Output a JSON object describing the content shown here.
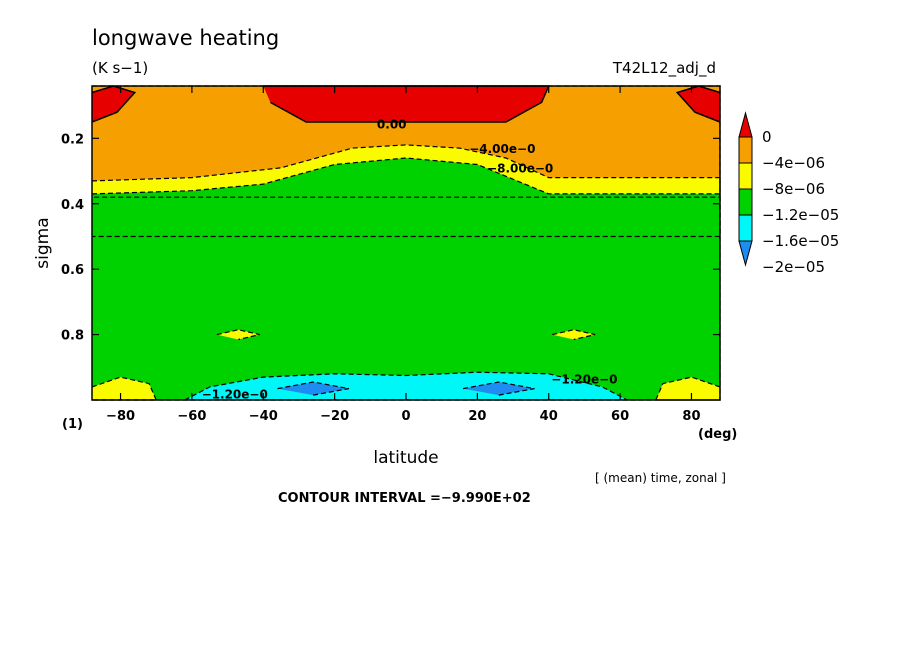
{
  "title": "longwave heating",
  "units": "(K s−1)",
  "run_id": "T42L12_adj_d",
  "panel_label": "(1)",
  "x_unit": "(deg)",
  "averaging_note": "[ (mean) time, zonal ]",
  "contour_interval_text": "CONTOUR INTERVAL =−9.990E+02",
  "chart_data": {
    "type": "heatmap",
    "xlabel": "latitude",
    "ylabel": "sigma",
    "xlim": [
      -88,
      88
    ],
    "ylim": [
      0.04,
      1.0
    ],
    "y_inverted": true,
    "grid": false,
    "x_ticks": [
      -80,
      -60,
      -40,
      -20,
      0,
      20,
      40,
      60,
      80
    ],
    "x_tick_labels": [
      "−80",
      "−60",
      "−40",
      "−20",
      "0",
      "20",
      "40",
      "60",
      "80"
    ],
    "y_ticks": [
      0.2,
      0.4,
      0.6,
      0.8
    ],
    "y_tick_labels": [
      "0.2",
      "0.4",
      "0.6",
      "0.8"
    ],
    "legend": {
      "placement": "right",
      "levels": [
        {
          "label": "0",
          "color": "#e60000"
        },
        {
          "label": "−4e−06",
          "color": "#f5a000"
        },
        {
          "label": "−8e−06",
          "color": "#fbfb00"
        },
        {
          "label": "−1.2e−05",
          "color": "#00d200"
        },
        {
          "label": "−1.6e−05",
          "color": "#00f7f7"
        },
        {
          "label": "−2e−05",
          "color": "#1e8cf0"
        }
      ]
    },
    "contour_labels": [
      {
        "text": "0.00",
        "lat": -4,
        "sigma": 0.17
      },
      {
        "text": "−4.00e−0",
        "lat": 27,
        "sigma": 0.245
      },
      {
        "text": "−8.00e−0",
        "lat": 32,
        "sigma": 0.305
      },
      {
        "text": "−1.20e−0",
        "lat": 50,
        "sigma": 0.95
      },
      {
        "text": "−1.20e−0",
        "lat": -48,
        "sigma": 0.995
      }
    ],
    "regions": [
      {
        "level": "−4e−06",
        "color": "#f5a000",
        "boundary": [
          [
            -88,
            0.04
          ],
          [
            88,
            0.04
          ],
          [
            88,
            0.38
          ],
          [
            -88,
            0.38
          ]
        ]
      },
      {
        "level": "0",
        "color": "#e60000",
        "boundary": [
          [
            -40,
            0.04
          ],
          [
            40,
            0.04
          ],
          [
            38,
            0.09
          ],
          [
            28,
            0.15
          ],
          [
            -28,
            0.15
          ],
          [
            -38,
            0.09
          ]
        ]
      },
      {
        "level": "0",
        "color": "#e60000",
        "boundary": [
          [
            -88,
            0.06
          ],
          [
            -82,
            0.04
          ],
          [
            -76,
            0.06
          ],
          [
            -81,
            0.12
          ],
          [
            -88,
            0.15
          ]
        ]
      },
      {
        "level": "0",
        "color": "#e60000",
        "boundary": [
          [
            88,
            0.06
          ],
          [
            82,
            0.04
          ],
          [
            76,
            0.06
          ],
          [
            81,
            0.12
          ],
          [
            88,
            0.15
          ]
        ]
      },
      {
        "level": "−8e−06",
        "color": "#fbfb00",
        "boundary": [
          [
            -88,
            0.33
          ],
          [
            -60,
            0.32
          ],
          [
            -35,
            0.29
          ],
          [
            -15,
            0.23
          ],
          [
            0,
            0.22
          ],
          [
            15,
            0.23
          ],
          [
            28,
            0.26
          ],
          [
            40,
            0.32
          ],
          [
            60,
            0.32
          ],
          [
            88,
            0.32
          ],
          [
            88,
            0.5
          ],
          [
            -88,
            0.5
          ]
        ]
      },
      {
        "level": "−1.2e−05",
        "color": "#00d200",
        "boundary": [
          [
            -88,
            0.37
          ],
          [
            -60,
            0.36
          ],
          [
            -40,
            0.34
          ],
          [
            -20,
            0.28
          ],
          [
            0,
            0.26
          ],
          [
            20,
            0.28
          ],
          [
            40,
            0.37
          ],
          [
            60,
            0.37
          ],
          [
            88,
            0.37
          ],
          [
            88,
            1.0
          ],
          [
            -88,
            1.0
          ]
        ]
      },
      {
        "level": "−8e−06",
        "color": "#fbfb00",
        "boundary": [
          [
            -88,
            0.96
          ],
          [
            -80,
            0.93
          ],
          [
            -72,
            0.95
          ],
          [
            -70,
            1.0
          ],
          [
            -88,
            1.0
          ]
        ]
      },
      {
        "level": "−8e−06",
        "color": "#fbfb00",
        "boundary": [
          [
            88,
            0.96
          ],
          [
            80,
            0.93
          ],
          [
            72,
            0.95
          ],
          [
            70,
            1.0
          ],
          [
            88,
            1.0
          ]
        ]
      },
      {
        "level": "−8e−06",
        "color": "#fbfb00",
        "boundary": [
          [
            -53,
            0.8
          ],
          [
            -47,
            0.785
          ],
          [
            -41,
            0.8
          ],
          [
            -47,
            0.815
          ]
        ]
      },
      {
        "level": "−8e−06",
        "color": "#fbfb00",
        "boundary": [
          [
            41,
            0.8
          ],
          [
            47,
            0.785
          ],
          [
            53,
            0.8
          ],
          [
            47,
            0.815
          ]
        ]
      },
      {
        "level": "−1.6e−05",
        "color": "#00f7f7",
        "boundary": [
          [
            -62,
            1.0
          ],
          [
            -55,
            0.96
          ],
          [
            -40,
            0.93
          ],
          [
            -20,
            0.92
          ],
          [
            0,
            0.925
          ],
          [
            20,
            0.915
          ],
          [
            40,
            0.92
          ],
          [
            55,
            0.96
          ],
          [
            62,
            1.0
          ]
        ]
      },
      {
        "level": "−2e−05",
        "color": "#1e8cf0",
        "boundary": [
          [
            -36,
            0.965
          ],
          [
            -26,
            0.945
          ],
          [
            -16,
            0.965
          ],
          [
            -26,
            0.985
          ]
        ]
      },
      {
        "level": "−2e−05",
        "color": "#1e8cf0",
        "boundary": [
          [
            16,
            0.965
          ],
          [
            26,
            0.945
          ],
          [
            36,
            0.965
          ],
          [
            26,
            0.985
          ]
        ]
      }
    ]
  }
}
